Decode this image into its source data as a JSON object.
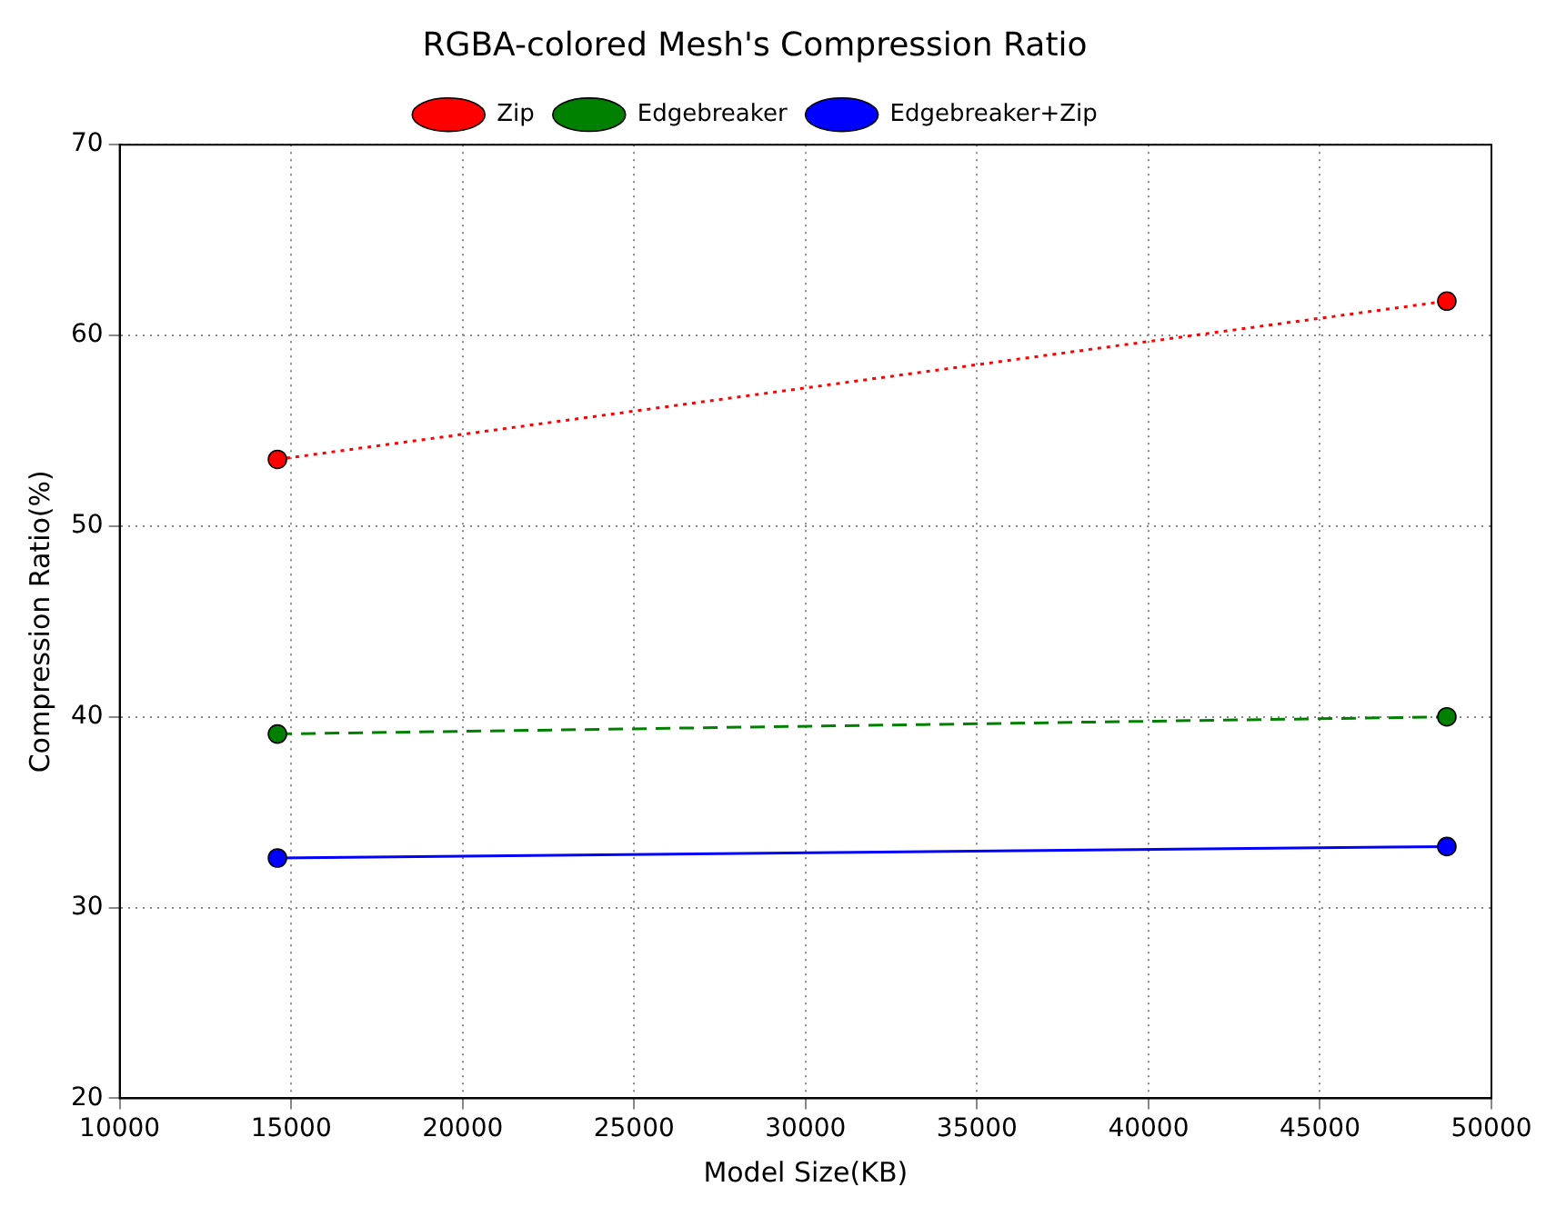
{
  "chart_data": {
    "type": "line",
    "title": "RGBA-colored Mesh's Compression Ratio",
    "xlabel": "Model Size(KB)",
    "ylabel": "Compression Ratio(%)",
    "x": [
      14600,
      48700
    ],
    "series": [
      {
        "name": "Zip",
        "color": "#ff0000",
        "values": [
          53.5,
          61.8
        ],
        "line_style": "dotted"
      },
      {
        "name": "Edgebreaker",
        "color": "#008000",
        "values": [
          39.1,
          40.0
        ],
        "line_style": "dashed"
      },
      {
        "name": "Edgebreaker+Zip",
        "color": "#0000ff",
        "values": [
          32.6,
          33.2
        ],
        "line_style": "solid"
      }
    ],
    "xlim": [
      10000,
      50000
    ],
    "xticks": [
      10000,
      15000,
      20000,
      25000,
      30000,
      35000,
      40000,
      45000,
      50000
    ],
    "ylim": [
      20,
      70
    ],
    "yticks": [
      20,
      30,
      40,
      50,
      60,
      70
    ],
    "grid": true,
    "legend": "top",
    "marker": "circle"
  }
}
